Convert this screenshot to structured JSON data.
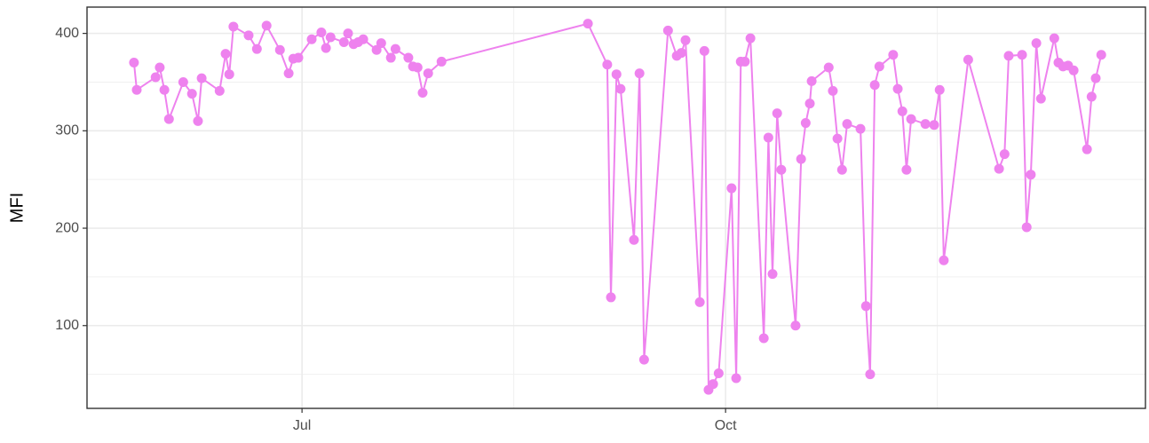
{
  "chart_data": {
    "type": "line",
    "y_label": "MFI",
    "color": "#EE82EE",
    "x": [
      145.5,
      146.1,
      150.2,
      151.1,
      152.1,
      153.1,
      156.2,
      158.1,
      159.4,
      160.2,
      164.1,
      165.4,
      166.2,
      167.1,
      170.4,
      172.2,
      174.3,
      177.2,
      179.1,
      180.1,
      181.2,
      184.1,
      186.2,
      187.2,
      188.2,
      191.1,
      192.0,
      193.2,
      194.2,
      195.3,
      198.2,
      199.2,
      201.3,
      202.3,
      205.1,
      206.1,
      207.1,
      208.2,
      209.4,
      212.3,
      244.1,
      248.3,
      249.1,
      250.3,
      251.2,
      254.1,
      255.3,
      256.3,
      261.5,
      263.4,
      264.4,
      265.3,
      268.4,
      269.4,
      270.3,
      271.3,
      272.5,
      275.3,
      276.3,
      277.3,
      278.2,
      279.4,
      282.3,
      283.3,
      284.2,
      285.2,
      286.1,
      289.2,
      290.4,
      291.4,
      292.3,
      292.7,
      296.4,
      297.3,
      298.3,
      299.3,
      300.4,
      303.3,
      304.5,
      305.4,
      306.4,
      307.4,
      310.4,
      311.4,
      312.4,
      313.3,
      314.3,
      317.4,
      319.3,
      320.5,
      321.4,
      326.7,
      333.4,
      334.6,
      335.5,
      338.4,
      339.4,
      340.3,
      341.5,
      342.5,
      345.4,
      346.3,
      347.3,
      348.4,
      349.6,
      352.5,
      353.5,
      354.4,
      355.6
    ],
    "values": [
      370,
      342,
      355,
      365,
      342,
      312,
      350,
      338,
      310,
      354,
      341,
      379,
      358,
      407,
      398,
      384,
      408,
      383,
      359,
      374,
      375,
      394,
      401,
      385,
      396,
      391,
      400,
      389,
      391,
      394,
      383,
      390,
      375,
      384,
      375,
      366,
      365,
      339,
      359,
      371,
      410,
      368,
      129,
      358,
      343,
      188,
      359,
      65,
      403,
      377,
      380,
      393,
      124,
      382,
      34,
      40,
      51,
      241,
      46,
      371,
      371,
      395,
      87,
      293,
      153,
      318,
      260,
      100,
      271,
      308,
      328,
      351,
      365,
      341,
      292,
      260,
      307,
      302,
      120,
      50,
      347,
      366,
      378,
      343,
      320,
      260,
      312,
      307,
      306,
      342,
      167,
      373,
      261,
      276,
      377,
      378,
      201,
      255,
      390,
      333,
      395,
      370,
      366,
      367,
      362,
      281,
      335,
      354,
      378
    ],
    "xlim": [
      135.3,
      365.2
    ],
    "xticks": [
      {
        "value": 182,
        "label": "Jul"
      },
      {
        "value": 274,
        "label": "Oct"
      }
    ],
    "xminor": [
      228,
      320
    ],
    "ylim": [
      15,
      427
    ],
    "yticks": [
      100,
      200,
      300,
      400
    ],
    "yminor": [
      50,
      150,
      250,
      350
    ],
    "grid": true
  }
}
